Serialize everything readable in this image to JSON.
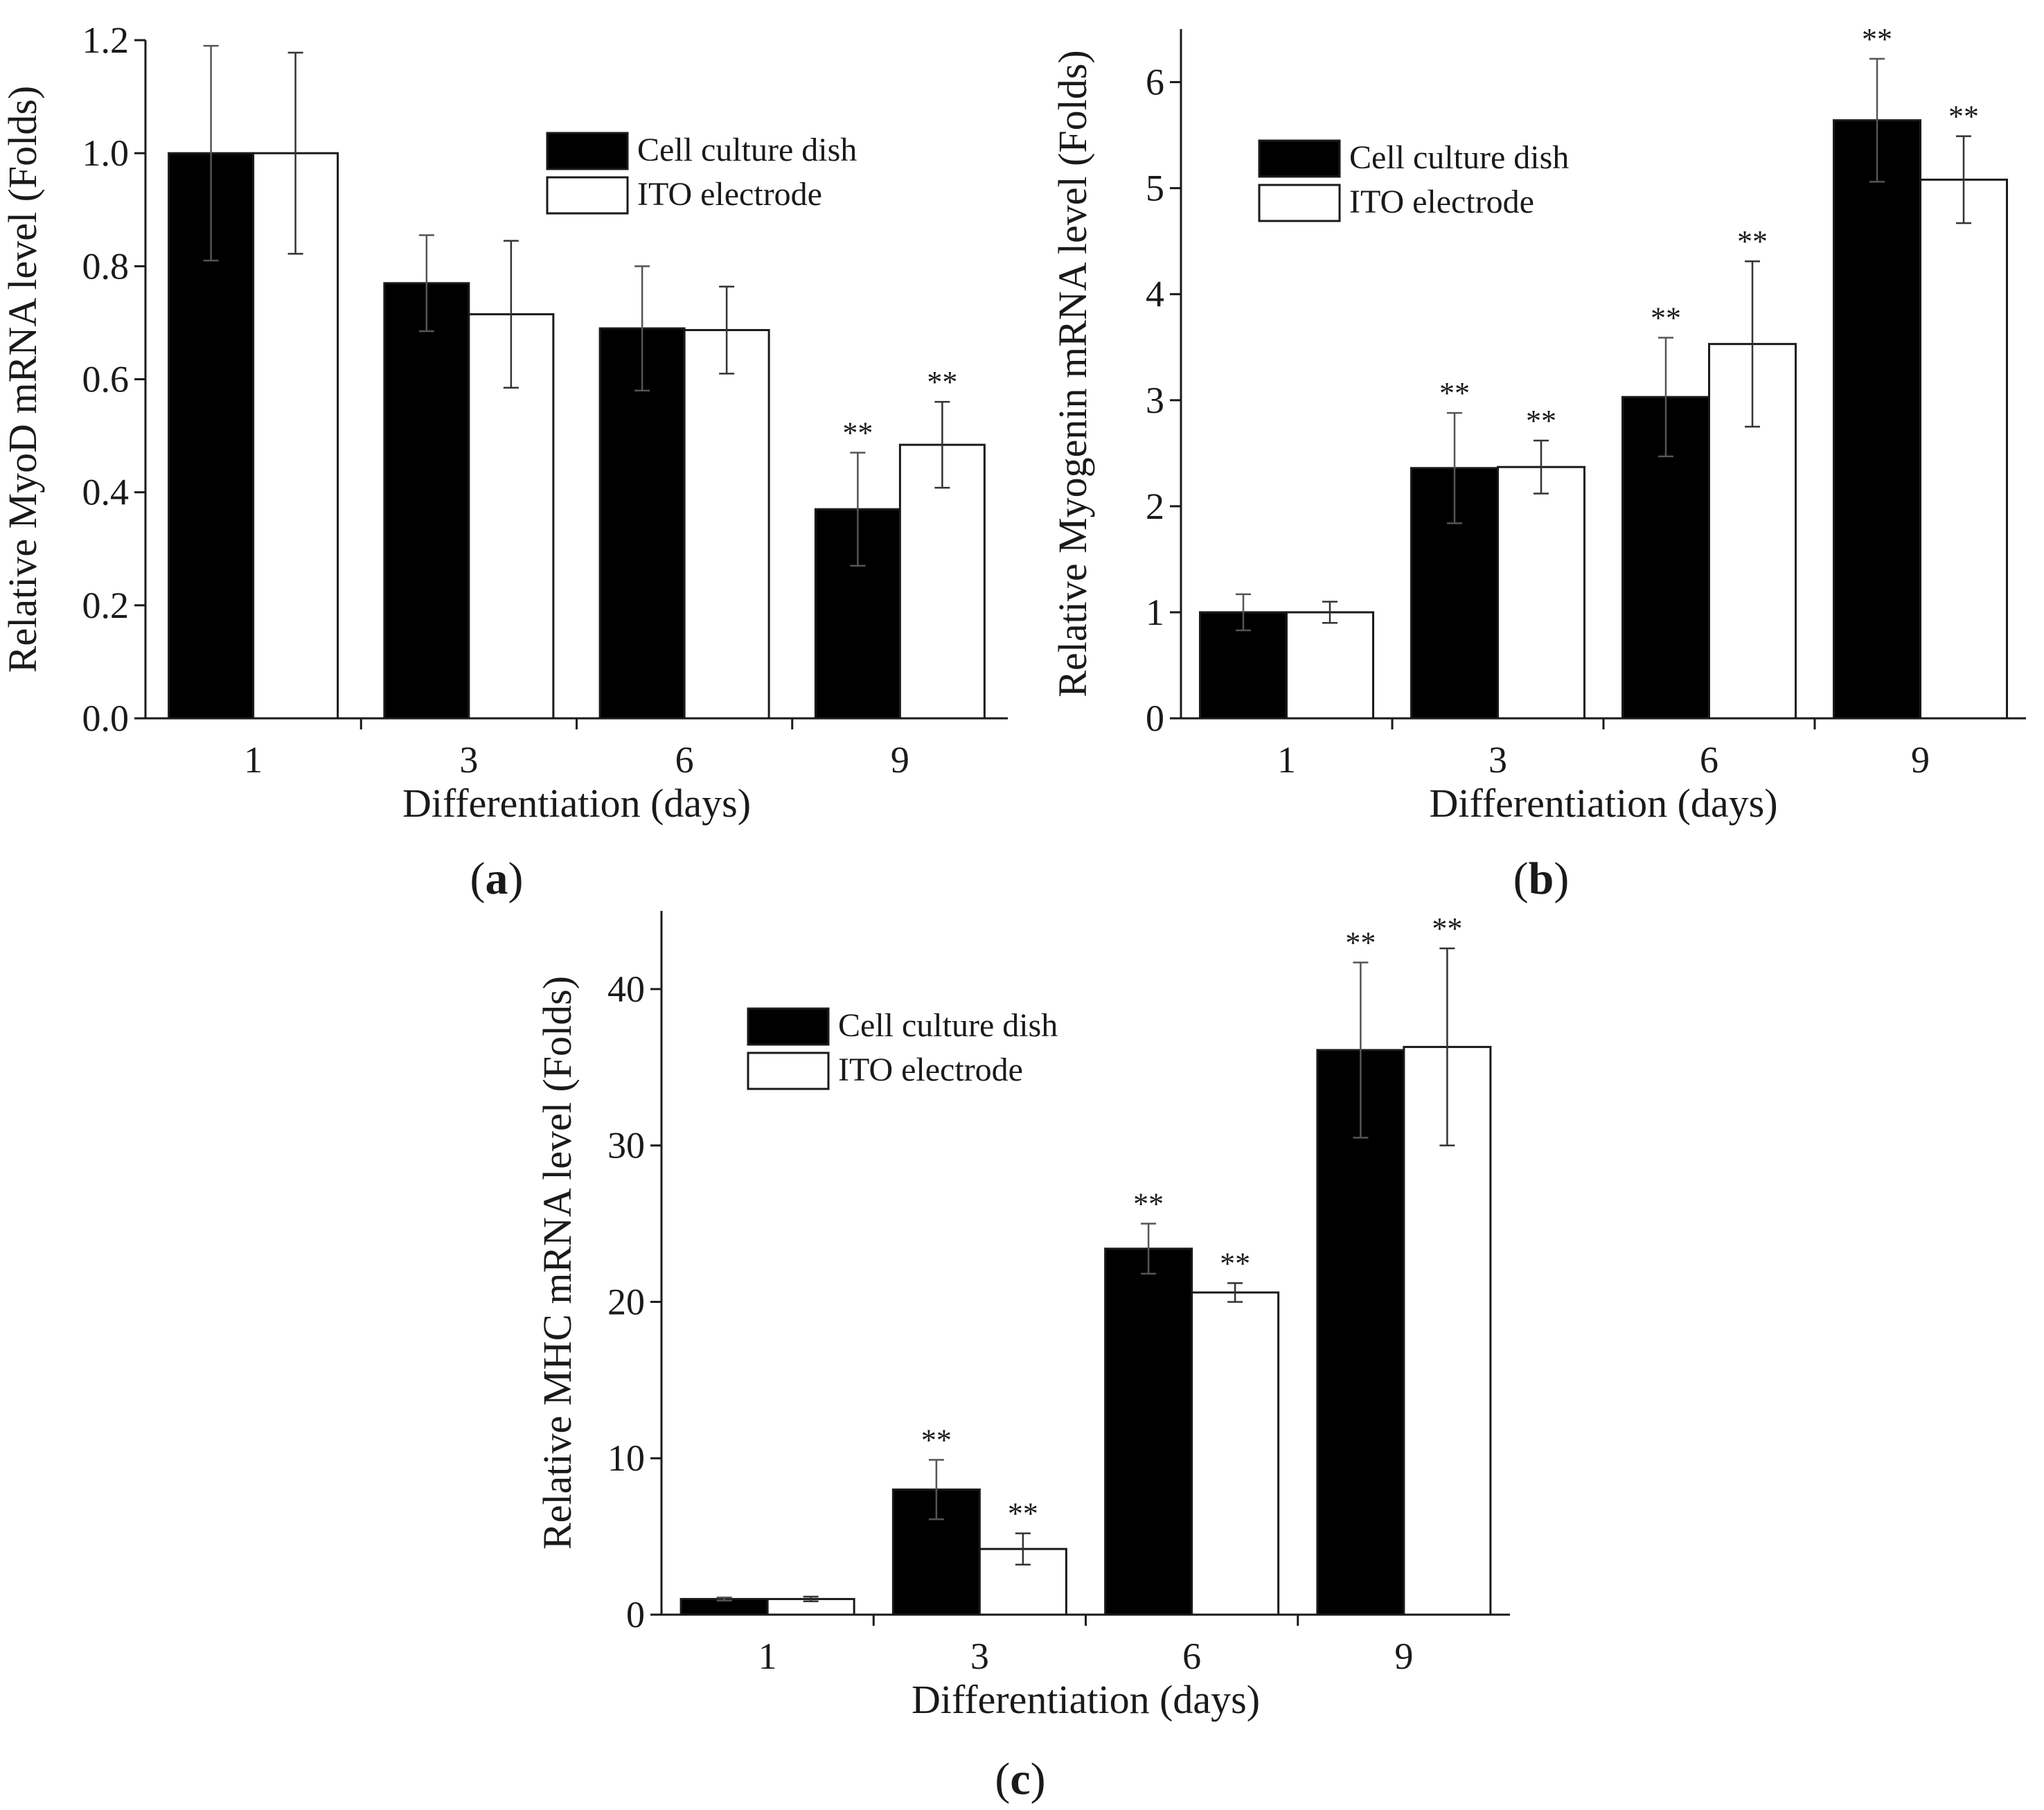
{
  "chart_data": [
    {
      "id": "a",
      "type": "bar",
      "panel_label": "a",
      "xlabel": "Differentiation (days)",
      "ylabel": "Relative MyoD mRNA level (Folds)",
      "categories": [
        "1",
        "3",
        "6",
        "9"
      ],
      "ylim": [
        0,
        1.2
      ],
      "yticks": [
        0,
        0.2,
        0.4,
        0.6,
        0.8,
        1.0,
        1.2
      ],
      "ytick_labels": [
        "0.0",
        "0.2",
        "0.4",
        "0.6",
        "0.8",
        "1.0",
        "1.2"
      ],
      "legend_position": "top-right",
      "series": [
        {
          "name": "Cell culture dish",
          "fill": "#000000",
          "values": [
            1.0,
            0.77,
            0.69,
            0.37
          ],
          "errors": [
            0.19,
            0.085,
            0.11,
            0.1
          ],
          "significance": [
            "",
            "",
            "",
            "**"
          ]
        },
        {
          "name": "ITO electrode",
          "fill": "#ffffff",
          "values": [
            1.0,
            0.715,
            0.687,
            0.484
          ],
          "errors": [
            0.178,
            0.13,
            0.077,
            0.076
          ],
          "significance": [
            "",
            "",
            "",
            "**"
          ]
        }
      ]
    },
    {
      "id": "b",
      "type": "bar",
      "panel_label": "b",
      "xlabel": "Differentiation (days)",
      "ylabel": "Relative Myogenin mRNA level (Folds)",
      "categories": [
        "1",
        "3",
        "6",
        "9"
      ],
      "ylim": [
        0,
        6.5
      ],
      "yticks": [
        0,
        1,
        2,
        3,
        4,
        5,
        6
      ],
      "ytick_labels": [
        "0",
        "1",
        "2",
        "3",
        "4",
        "5",
        "6"
      ],
      "legend_position": "top-left",
      "series": [
        {
          "name": "Cell culture dish",
          "fill": "#000000",
          "values": [
            1.0,
            2.36,
            3.03,
            5.64
          ],
          "errors": [
            0.17,
            0.52,
            0.56,
            0.58
          ],
          "significance": [
            "",
            "**",
            "**",
            "**"
          ]
        },
        {
          "name": "ITO electrode",
          "fill": "#ffffff",
          "values": [
            1.0,
            2.37,
            3.53,
            5.08
          ],
          "errors": [
            0.1,
            0.25,
            0.78,
            0.41
          ],
          "significance": [
            "",
            "**",
            "**",
            "**"
          ]
        }
      ]
    },
    {
      "id": "c",
      "type": "bar",
      "panel_label": "c",
      "xlabel": "Differentiation (days)",
      "ylabel": "Relative MHC mRNA level (Folds)",
      "categories": [
        "1",
        "3",
        "6",
        "9"
      ],
      "ylim": [
        0,
        45
      ],
      "yticks": [
        0,
        10,
        20,
        30,
        40
      ],
      "ytick_labels": [
        "0",
        "10",
        "20",
        "30",
        "40"
      ],
      "legend_position": "top-left",
      "series": [
        {
          "name": "Cell culture dish",
          "fill": "#000000",
          "values": [
            1.0,
            8.0,
            23.4,
            36.1
          ],
          "errors": [
            0.1,
            1.9,
            1.6,
            5.6
          ],
          "significance": [
            "",
            "**",
            "**",
            "**"
          ]
        },
        {
          "name": "ITO electrode",
          "fill": "#ffffff",
          "values": [
            1.0,
            4.2,
            20.6,
            36.3
          ],
          "errors": [
            0.15,
            1.0,
            0.6,
            6.3
          ],
          "significance": [
            "",
            "**",
            "**",
            "**"
          ]
        }
      ]
    }
  ]
}
